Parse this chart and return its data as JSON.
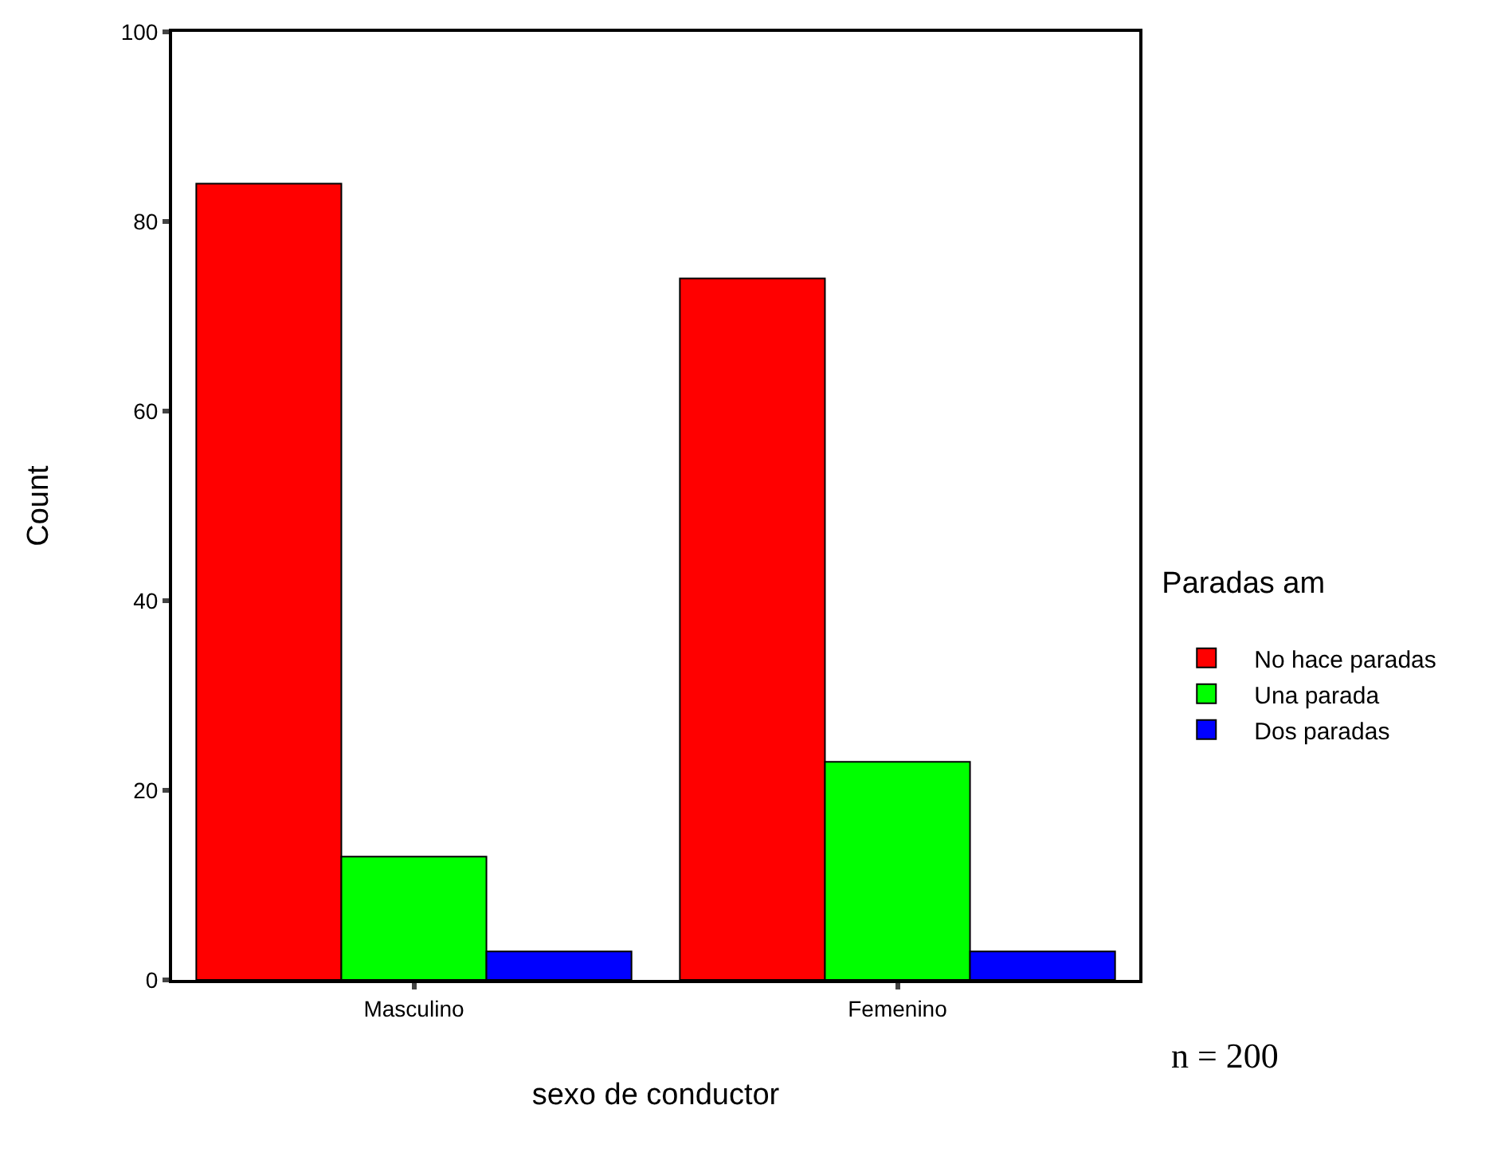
{
  "chart_data": {
    "type": "bar",
    "xlabel": "sexo de conductor",
    "ylabel": "Count",
    "legend_title": "Paradas am",
    "categories": [
      "Masculino",
      "Femenino"
    ],
    "series": [
      {
        "name": "No hace paradas",
        "color": "#ff0000",
        "values": [
          84,
          74
        ]
      },
      {
        "name": "Una parada",
        "color": "#00ff00",
        "values": [
          13,
          23
        ]
      },
      {
        "name": "Dos paradas",
        "color": "#0000ff",
        "values": [
          3,
          3
        ]
      }
    ],
    "ylim": [
      0,
      100
    ],
    "yticks": [
      0,
      20,
      40,
      60,
      80,
      100
    ],
    "grid": false,
    "legend": "right",
    "annotations": [
      "n = 200"
    ]
  }
}
